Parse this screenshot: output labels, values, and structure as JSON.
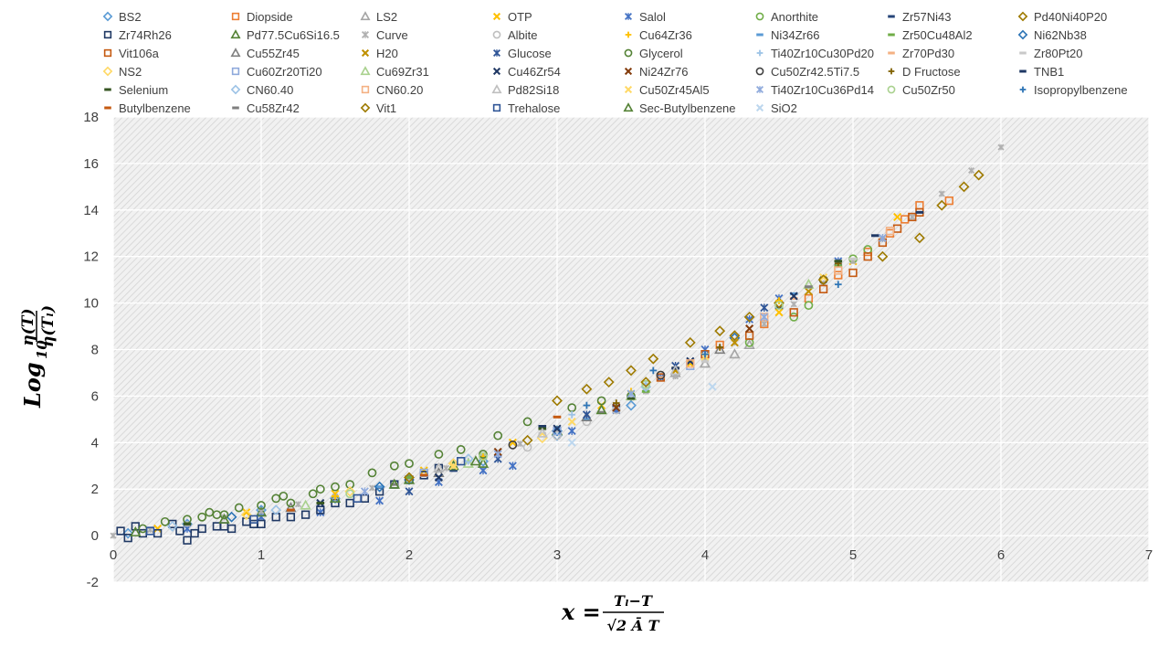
{
  "chart_data": {
    "type": "scatter",
    "title": "",
    "xlim": [
      0,
      7
    ],
    "ylim": [
      -2,
      18
    ],
    "x_ticks": [
      0,
      1,
      2,
      3,
      4,
      5,
      6,
      7
    ],
    "y_ticks": [
      -2,
      0,
      2,
      4,
      6,
      8,
      10,
      12,
      14,
      16,
      18
    ],
    "grid": true,
    "legend_placement": "top",
    "xlabel": {
      "lhs": "x =",
      "numerator": "Tₗ−T",
      "denominator": "√2 Ā T"
    },
    "ylabel": {
      "prefix": "Log",
      "base": "10",
      "numerator": "η(T)",
      "denominator": "η(Tₗ)"
    },
    "series": [
      {
        "name": "BS2",
        "marker": "diamond-open",
        "color": "#5B9BD5",
        "x": [
          0.1,
          0.5,
          1.0,
          1.5,
          2.0,
          2.5,
          3.0,
          3.5
        ],
        "y": [
          0.1,
          0.5,
          1.1,
          1.6,
          2.4,
          3.2,
          4.3,
          5.6
        ]
      },
      {
        "name": "Diopside",
        "marker": "square-open",
        "color": "#ED7D31",
        "x": [
          4.1,
          4.4,
          4.7,
          4.9,
          5.1,
          5.25,
          5.35,
          5.45,
          5.65
        ],
        "y": [
          8.2,
          9.1,
          10.2,
          11.2,
          12.2,
          13.0,
          13.6,
          14.2,
          14.4
        ]
      },
      {
        "name": "LS2",
        "marker": "triangle-open",
        "color": "#A5A5A5",
        "x": [
          3.5,
          3.8,
          4.0,
          4.2,
          4.3
        ],
        "y": [
          6.0,
          7.0,
          7.4,
          7.8,
          8.2
        ]
      },
      {
        "name": "OTP",
        "marker": "x",
        "color": "#FFC000",
        "x": [
          0.3,
          0.9,
          1.5,
          2.1,
          2.7,
          3.3,
          3.9,
          4.5,
          5.0,
          5.3
        ],
        "y": [
          0.3,
          1.0,
          1.8,
          2.8,
          4.0,
          5.6,
          7.4,
          9.6,
          11.8,
          13.7
        ]
      },
      {
        "name": "Salol",
        "marker": "star",
        "color": "#4472C4",
        "x": [
          0.5,
          1.0,
          1.4,
          1.8,
          2.2,
          2.5,
          2.7,
          3.1,
          3.4,
          3.7,
          4.0,
          4.3,
          4.5,
          4.9
        ],
        "y": [
          0.3,
          0.8,
          1.0,
          1.5,
          2.3,
          2.8,
          3.0,
          4.5,
          5.4,
          6.8,
          8.0,
          9.3,
          10.2,
          11.8
        ]
      },
      {
        "name": "Anorthite",
        "marker": "circle-open",
        "color": "#70AD47",
        "x": [
          4.3,
          4.6,
          4.7,
          4.8,
          5.0,
          5.1
        ],
        "y": [
          8.3,
          9.4,
          9.9,
          11.0,
          11.9,
          12.3
        ]
      },
      {
        "name": "Zr57Ni43",
        "marker": "dash",
        "color": "#264478",
        "x": [
          1.2,
          2.3,
          3.4,
          4.5
        ],
        "y": [
          1.1,
          2.8,
          5.6,
          9.8
        ]
      },
      {
        "name": "Pd40Ni40P20",
        "marker": "diamond-open",
        "color": "#9E7A00",
        "x": [
          3.0,
          3.2,
          3.35,
          3.5,
          3.65,
          3.9,
          4.1,
          4.3,
          4.5,
          5.2,
          5.45,
          5.6,
          5.75,
          5.85
        ],
        "y": [
          5.8,
          6.3,
          6.6,
          7.1,
          7.6,
          8.3,
          8.8,
          9.4,
          10.0,
          12.0,
          12.8,
          14.2,
          15.0,
          15.5
        ]
      },
      {
        "name": "Zr74Rh26",
        "marker": "square-open",
        "color": "#1F3864",
        "x": [
          0.05,
          0.1,
          0.15,
          0.2,
          0.3,
          0.4,
          0.45,
          0.5,
          0.55,
          0.6,
          0.7,
          0.75,
          0.8,
          0.9,
          0.95,
          1.0,
          1.1,
          1.2,
          1.3,
          1.4,
          1.5,
          1.6,
          1.7,
          1.8,
          1.9,
          2.0,
          2.1,
          2.2
        ],
        "y": [
          0.2,
          -0.1,
          0.4,
          0.1,
          0.1,
          0.5,
          0.2,
          -0.2,
          0.1,
          0.3,
          0.4,
          0.4,
          0.3,
          0.6,
          0.5,
          0.5,
          0.8,
          0.8,
          0.9,
          1.1,
          1.4,
          1.4,
          1.6,
          1.9,
          2.2,
          2.4,
          2.6,
          2.9
        ]
      },
      {
        "name": "Pd77.5Cu6Si16.5",
        "marker": "triangle-open",
        "color": "#548235",
        "x": [
          1.0,
          1.5,
          2.0,
          2.3,
          2.5,
          3.0
        ],
        "y": [
          1.0,
          1.6,
          2.4,
          3.0,
          3.1,
          4.5
        ]
      },
      {
        "name": "Curve",
        "marker": "star",
        "color": "#B0B0B0",
        "x": [
          0.0,
          0.25,
          0.5,
          0.75,
          1.0,
          1.25,
          1.5,
          1.75,
          2.0,
          2.25,
          2.5,
          2.75,
          3.0,
          3.2,
          3.4,
          3.6,
          3.8,
          4.0,
          4.2,
          4.4,
          4.6,
          4.8,
          5.0,
          5.2,
          5.4,
          5.6,
          5.8,
          6.0
        ],
        "y": [
          0.0,
          0.25,
          0.5,
          0.78,
          1.05,
          1.35,
          1.68,
          2.05,
          2.45,
          2.9,
          3.4,
          3.95,
          4.55,
          5.05,
          5.6,
          6.2,
          6.85,
          7.55,
          8.3,
          9.1,
          9.95,
          10.85,
          11.8,
          12.75,
          13.7,
          14.7,
          15.7,
          16.7
        ]
      },
      {
        "name": "Albite",
        "marker": "circle-open",
        "color": "#BFBFBF",
        "x": [
          2.8,
          3.0,
          3.2,
          3.4
        ],
        "y": [
          3.8,
          4.3,
          4.9,
          5.4
        ]
      },
      {
        "name": "Cu64Zr36",
        "marker": "plus",
        "color": "#FFC000",
        "x": [
          1.5,
          2.5,
          3.5,
          4.5
        ],
        "y": [
          1.7,
          3.4,
          6.2,
          10.1
        ]
      },
      {
        "name": "Ni34Zr66",
        "marker": "dash",
        "color": "#5B9BD5",
        "x": [
          1.8,
          3.2,
          4.6
        ],
        "y": [
          2.1,
          5.0,
          10.4
        ]
      },
      {
        "name": "Zr50Cu48Al2",
        "marker": "dash",
        "color": "#70AD47",
        "x": [
          2.0,
          3.6,
          4.9
        ],
        "y": [
          2.5,
          6.2,
          11.6
        ]
      },
      {
        "name": "Ni62Nb38",
        "marker": "diamond-open",
        "color": "#2E75B6",
        "x": [
          0.8,
          1.8,
          3.0,
          4.2
        ],
        "y": [
          0.8,
          2.1,
          4.5,
          8.5
        ]
      },
      {
        "name": "Vit106a",
        "marker": "square-open",
        "color": "#C55A11",
        "x": [
          3.7,
          4.0,
          4.3,
          4.6,
          4.8,
          5.0,
          5.1,
          5.2,
          5.3,
          5.4,
          5.45
        ],
        "y": [
          6.8,
          7.8,
          8.6,
          9.6,
          10.6,
          11.3,
          12.0,
          12.6,
          13.2,
          13.7,
          13.9
        ]
      },
      {
        "name": "Cu55Zr45",
        "marker": "triangle-open",
        "color": "#7F7F7F",
        "x": [
          1.2,
          2.2,
          3.2,
          4.1
        ],
        "y": [
          1.2,
          2.7,
          5.1,
          8.0
        ]
      },
      {
        "name": "H20",
        "marker": "x",
        "color": "#BF9000",
        "x": [
          3.8,
          4.2,
          4.7
        ],
        "y": [
          7.1,
          8.3,
          10.5
        ]
      },
      {
        "name": "Glucose",
        "marker": "star",
        "color": "#2F5597",
        "x": [
          2.0,
          2.6,
          3.2,
          3.8,
          4.4
        ],
        "y": [
          1.9,
          3.3,
          5.2,
          7.3,
          9.8
        ]
      },
      {
        "name": "Glycerol",
        "marker": "circle-open",
        "color": "#548235",
        "x": [
          0.2,
          0.35,
          0.5,
          0.6,
          0.65,
          0.7,
          0.75,
          0.85,
          1.0,
          1.1,
          1.15,
          1.2,
          1.35,
          1.4,
          1.5,
          1.6,
          1.75,
          1.9,
          2.0,
          2.2,
          2.35,
          2.5,
          2.6,
          2.8,
          3.1,
          3.3,
          3.5
        ],
        "y": [
          0.3,
          0.6,
          0.7,
          0.8,
          1.0,
          0.9,
          0.9,
          1.2,
          1.3,
          1.6,
          1.7,
          1.4,
          1.8,
          2.0,
          2.1,
          2.2,
          2.7,
          3.0,
          3.1,
          3.5,
          3.7,
          3.5,
          4.3,
          4.9,
          5.5,
          5.8,
          6.0
        ]
      },
      {
        "name": "Ti40Zr10Cu30Pd20",
        "marker": "plus",
        "color": "#9DC3E6",
        "x": [
          2.4,
          3.1,
          3.6
        ],
        "y": [
          3.2,
          5.2,
          6.5
        ]
      },
      {
        "name": "Zr70Pd30",
        "marker": "dash",
        "color": "#F4B183",
        "x": [
          3.7,
          4.6
        ],
        "y": [
          6.8,
          10.2
        ]
      },
      {
        "name": "Zr80Pt20",
        "marker": "dash",
        "color": "#C9C9C9",
        "x": [
          2.9,
          4.0,
          5.0
        ],
        "y": [
          4.4,
          7.5,
          11.9
        ]
      },
      {
        "name": "NS2",
        "marker": "diamond-open",
        "color": "#FFD966",
        "x": [
          0.9,
          1.6,
          2.3,
          2.9
        ],
        "y": [
          0.9,
          1.9,
          3.1,
          4.2
        ]
      },
      {
        "name": "Cu60Zr20Ti20",
        "marker": "square-open",
        "color": "#8EA9DB",
        "x": [
          2.1,
          3.0,
          3.9
        ],
        "y": [
          2.7,
          4.5,
          7.3
        ]
      },
      {
        "name": "Cu69Zr31",
        "marker": "triangle-open",
        "color": "#A9D18E",
        "x": [
          1.3,
          2.4,
          3.5,
          4.7
        ],
        "y": [
          1.3,
          3.1,
          6.0,
          10.8
        ]
      },
      {
        "name": "Cu46Zr54",
        "marker": "x",
        "color": "#203864",
        "x": [
          1.4,
          2.2,
          3.0,
          3.9,
          4.6
        ],
        "y": [
          1.4,
          2.5,
          4.6,
          7.5,
          10.3
        ]
      },
      {
        "name": "Ni24Zr76",
        "marker": "x",
        "color": "#843C0C",
        "x": [
          2.6,
          3.4,
          4.3
        ],
        "y": [
          3.6,
          5.5,
          8.9
        ]
      },
      {
        "name": "Cu50Zr42.5Ti7.5",
        "marker": "circle-open",
        "color": "#404040",
        "x": [
          2.7,
          3.7,
          4.8
        ],
        "y": [
          3.9,
          6.9,
          11.0
        ]
      },
      {
        "name": "D Fructose",
        "marker": "plus",
        "color": "#806000",
        "x": [
          3.4,
          4.1,
          4.9
        ],
        "y": [
          5.7,
          8.1,
          11.7
        ]
      },
      {
        "name": "TNB1",
        "marker": "dash",
        "color": "#1F3864",
        "x": [
          2.9,
          3.8,
          5.15,
          5.45
        ],
        "y": [
          4.7,
          7.2,
          12.9,
          13.9
        ]
      },
      {
        "name": "Selenium",
        "marker": "dash",
        "color": "#375623",
        "x": [
          0.5,
          1.4,
          2.9,
          3.5,
          4.9
        ],
        "y": [
          0.5,
          1.4,
          4.6,
          5.9,
          11.8
        ]
      },
      {
        "name": "CN60.40",
        "marker": "diamond-open",
        "color": "#9DC3E6",
        "x": [
          0.4,
          1.1,
          2.4,
          3.6
        ],
        "y": [
          0.4,
          1.1,
          3.3,
          6.4
        ]
      },
      {
        "name": "CN60.20",
        "marker": "square-open",
        "color": "#F4B183",
        "x": [
          3.9,
          4.4,
          4.9,
          5.25
        ],
        "y": [
          7.4,
          9.4,
          11.4,
          13.1
        ]
      },
      {
        "name": "Pd82Si18",
        "marker": "triangle-open",
        "color": "#BFBFBF",
        "x": [
          2.2,
          2.9,
          3.8
        ],
        "y": [
          2.9,
          4.4,
          7.1
        ]
      },
      {
        "name": "Cu50Zr45Al5",
        "marker": "x",
        "color": "#FFD966",
        "x": [
          2.3,
          3.1,
          4.0,
          4.8
        ],
        "y": [
          3.0,
          4.9,
          7.7,
          11.1
        ]
      },
      {
        "name": "Ti40Zr10Cu36Pd14",
        "marker": "star",
        "color": "#8FAADC",
        "x": [
          1.7,
          2.6,
          3.5,
          4.4,
          5.2
        ],
        "y": [
          1.9,
          3.5,
          6.1,
          9.4,
          12.8
        ]
      },
      {
        "name": "Cu50Zr50",
        "marker": "circle-open",
        "color": "#A9D18E",
        "x": [
          1.6,
          2.5,
          3.6,
          4.5
        ],
        "y": [
          1.8,
          3.4,
          6.5,
          9.9
        ]
      },
      {
        "name": "Isopropylbenzene",
        "marker": "plus",
        "color": "#2E75B6",
        "x": [
          3.2,
          3.65,
          4.0,
          4.9
        ],
        "y": [
          5.6,
          7.1,
          7.8,
          10.8
        ]
      },
      {
        "name": "Butylbenzene",
        "marker": "dash",
        "color": "#C55A11",
        "x": [
          1.2,
          2.1,
          3.0
        ],
        "y": [
          1.1,
          2.6,
          5.1
        ]
      },
      {
        "name": "Cu58Zr42",
        "marker": "dash",
        "color": "#7F7F7F",
        "x": [
          1.9,
          3.3,
          4.7
        ],
        "y": [
          2.2,
          5.3,
          10.7
        ]
      },
      {
        "name": "Vit1",
        "marker": "diamond-open",
        "color": "#9E7A00",
        "x": [
          2.0,
          2.8,
          3.6,
          4.2,
          4.8
        ],
        "y": [
          2.5,
          4.1,
          6.6,
          8.6,
          11.0
        ]
      },
      {
        "name": "Trehalose",
        "marker": "square-open",
        "color": "#2F5597",
        "x": [
          0.25,
          0.95,
          1.65,
          2.35
        ],
        "y": [
          0.2,
          0.7,
          1.6,
          3.2
        ]
      },
      {
        "name": "Sec-Butylbenzene",
        "marker": "triangle-open",
        "color": "#548235",
        "x": [
          0.15,
          0.75,
          1.9,
          2.45,
          3.3
        ],
        "y": [
          0.15,
          0.7,
          2.2,
          3.2,
          5.4
        ]
      },
      {
        "name": "SiO2",
        "marker": "x",
        "color": "#BDD7EE",
        "x": [
          3.1,
          4.05
        ],
        "y": [
          4.0,
          6.4
        ]
      }
    ]
  }
}
